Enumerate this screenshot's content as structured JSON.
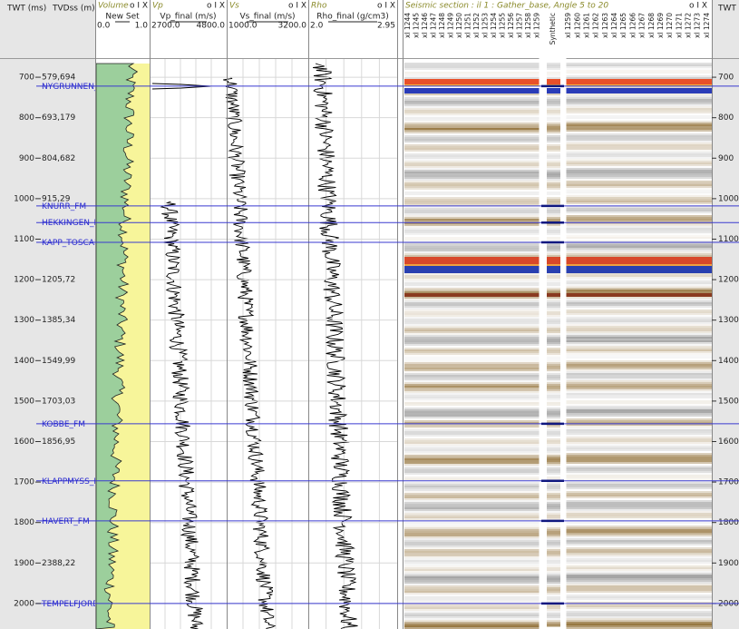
{
  "left_axis": {
    "twt_title": "TWT (ms)",
    "tvd_title": "TVDss (m)"
  },
  "right_axis": {
    "title": "TWT"
  },
  "twt_range": [
    655,
    2063
  ],
  "twt_ticks": [
    700,
    800,
    900,
    1000,
    1100,
    1200,
    1300,
    1400,
    1500,
    1600,
    1700,
    1800,
    1900,
    2000
  ],
  "tvd_labels": [
    {
      "twt": 700,
      "label": "579,694"
    },
    {
      "twt": 800,
      "label": "693,179"
    },
    {
      "twt": 900,
      "label": "804,682"
    },
    {
      "twt": 1000,
      "label": "915,29"
    },
    {
      "twt": 1200,
      "label": "1205,72"
    },
    {
      "twt": 1300,
      "label": "1385,34"
    },
    {
      "twt": 1400,
      "label": "1549,99"
    },
    {
      "twt": 1500,
      "label": "1703,03"
    },
    {
      "twt": 1600,
      "label": "1856,95"
    },
    {
      "twt": 1900,
      "label": "2388,22"
    }
  ],
  "horizons": [
    {
      "name": "NYGRUNNEN_",
      "twt": 722
    },
    {
      "name": "KNURR_FM",
      "twt": 1018
    },
    {
      "name": "HEKKINGEN_F",
      "twt": 1059
    },
    {
      "name": "KAPP_TOSCAN",
      "twt": 1108
    },
    {
      "name": "KOBBE_FM",
      "twt": 1556
    },
    {
      "name": "KLAPPMYSS_F",
      "twt": 1697
    },
    {
      "name": "HAVERT_FM",
      "twt": 1796
    },
    {
      "name": "TEMPELFJORD",
      "twt": 2000
    }
  ],
  "tracks": [
    {
      "title": "Volume",
      "curve": "New Set",
      "min": "0.0",
      "max": "1.0"
    },
    {
      "title": "Vp",
      "curve": "Vp_final (m/s)",
      "min": "2700.0",
      "max": "4800.0"
    },
    {
      "title": "Vs",
      "curve": "Vs_final (m/s)",
      "min": "1000.0",
      "max": "3200.0"
    },
    {
      "title": "Rho",
      "curve": "Rho_final (g/cm3)",
      "min": "2.0",
      "max": "2.95"
    }
  ],
  "seismic": {
    "title": "Seismic section : il 1 : Gather_base, Angle 5 to 20",
    "traces_left": [
      "xl 1244",
      "xl 1245",
      "xl 1246",
      "xl 1247",
      "xl 1248",
      "xl 1249",
      "xl 1250",
      "xl 1251",
      "xl 1252",
      "xl 1253",
      "xl 1254",
      "xl 1255",
      "xl 1256",
      "xl 1257",
      "xl 1258",
      "xl 1259"
    ],
    "synthetic": "Synthetic",
    "traces_right": [
      "xl 1259",
      "xl 1260",
      "xl 1261",
      "xl 1262",
      "xl 1263",
      "xl 1264",
      "xl 1265",
      "xl 1266",
      "xl 1267",
      "xl 1268",
      "xl 1269",
      "xl 1270",
      "xl 1271",
      "xl 1272",
      "xl 1273",
      "xl 1274"
    ]
  }
}
